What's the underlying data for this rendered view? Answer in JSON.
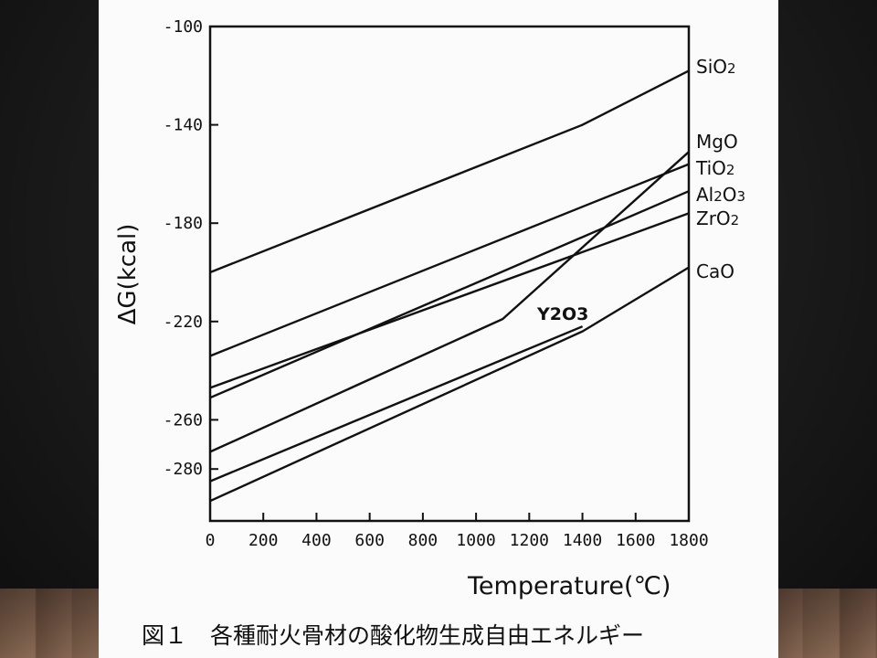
{
  "caption": "図１　各種耐火骨材の酸化物生成自由エネルギー",
  "chart_data": {
    "type": "line",
    "xlabel": "Temperature(℃)",
    "ylabel": "ΔG(kcal)",
    "xlim": [
      0,
      1800
    ],
    "ylim": [
      -300,
      -100
    ],
    "xticks": [
      "0",
      "200",
      "400",
      "600",
      "800",
      "1000",
      "1200",
      "1400",
      "1600",
      "1800"
    ],
    "yticks": [
      "-100",
      "-140",
      "-180",
      "-220",
      "-260",
      "-280"
    ],
    "ytick_values": [
      -100,
      -140,
      -180,
      -220,
      -260,
      -280
    ],
    "series": [
      {
        "name": "SiO2",
        "x": [
          0,
          1400,
          1800
        ],
        "y": [
          -200,
          -140,
          -118
        ]
      },
      {
        "name": "MgO",
        "x": [
          0,
          1100,
          1800
        ],
        "y": [
          -273,
          -219,
          -151
        ]
      },
      {
        "name": "TiO2",
        "x": [
          0,
          1800
        ],
        "y": [
          -234,
          -156
        ]
      },
      {
        "name": "Al2O3",
        "x": [
          0,
          1800
        ],
        "y": [
          -251,
          -167
        ]
      },
      {
        "name": "ZrO2",
        "x": [
          0,
          1800
        ],
        "y": [
          -247,
          -176
        ]
      },
      {
        "name": "Y2O3",
        "x": [
          0,
          1400
        ],
        "y": [
          -285,
          -222
        ]
      },
      {
        "name": "CaO",
        "x": [
          0,
          1400,
          1800
        ],
        "y": [
          -293,
          -224,
          -198
        ]
      }
    ],
    "labels": [
      "SiO2",
      "MgO",
      "TiO2",
      "Al2O3",
      "ZrO2",
      "CaO"
    ],
    "annotation": "Y2O3"
  }
}
